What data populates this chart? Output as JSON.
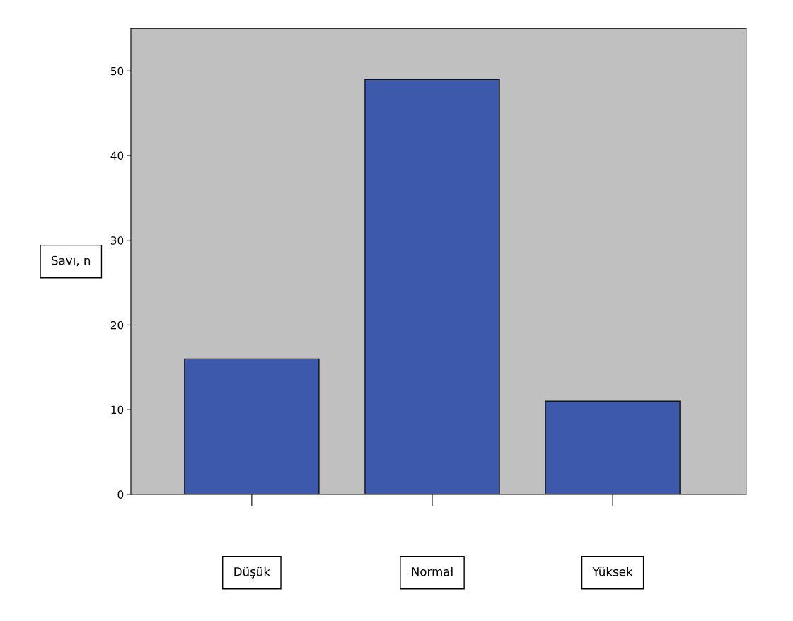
{
  "chart_data": {
    "type": "bar",
    "ylabel": "Savı, n",
    "categories": [
      "Düşük",
      "Normal",
      "Yüksek"
    ],
    "values": [
      16,
      49,
      11
    ],
    "color": "#3d59ab",
    "ylim": [
      0,
      55
    ],
    "yticks": [
      0,
      10,
      20,
      30,
      40,
      50
    ],
    "grid": false
  }
}
